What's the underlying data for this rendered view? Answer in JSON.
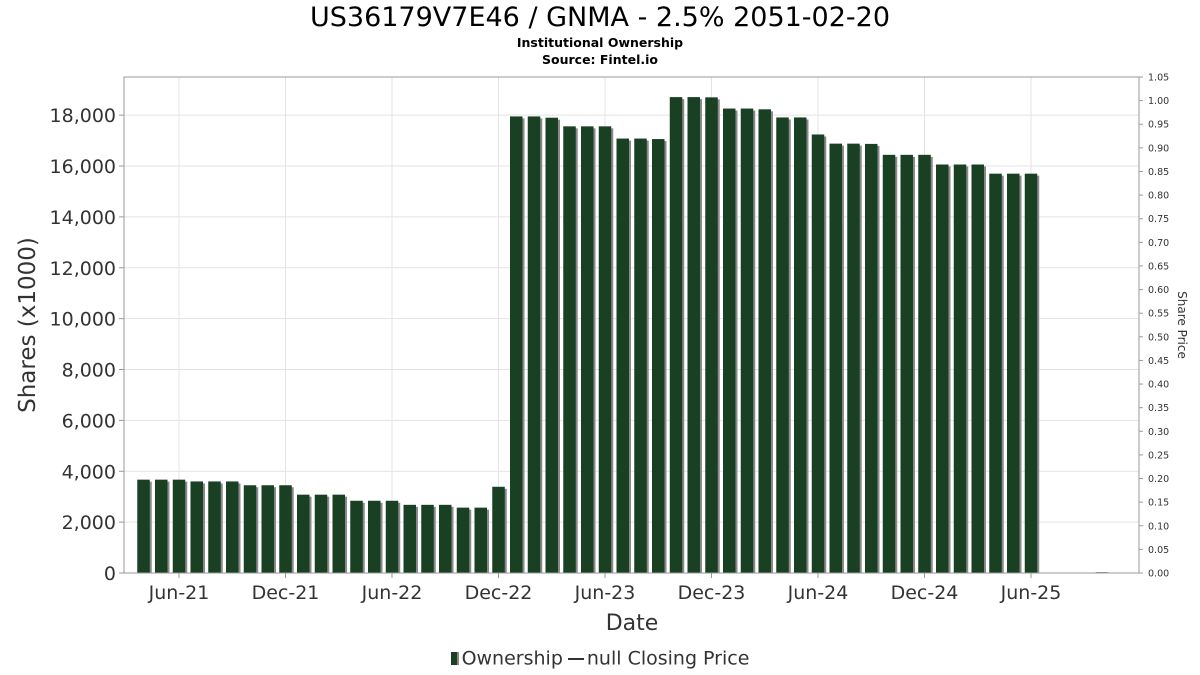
{
  "chart_data": {
    "type": "bar",
    "title": "US36179V7E46 / GNMA - 2.5% 2051-02-20",
    "subtitle": "Institutional Ownership",
    "source": "Source: Fintel.io",
    "xlabel": "Date",
    "ylabel": "Shares (x1000)",
    "ylabel_right": "Share Price",
    "ylim": [
      0,
      19500
    ],
    "ylim_right": [
      0,
      1.05
    ],
    "y_ticks": [
      "0",
      "2,000",
      "4,000",
      "6,000",
      "8,000",
      "10,000",
      "12,000",
      "14,000",
      "16,000",
      "18,000"
    ],
    "y_tick_values": [
      0,
      2000,
      4000,
      6000,
      8000,
      10000,
      12000,
      14000,
      16000,
      18000
    ],
    "y_right_ticks": [
      "0.00",
      "0.05",
      "0.10",
      "0.15",
      "0.20",
      "0.25",
      "0.30",
      "0.35",
      "0.40",
      "0.45",
      "0.50",
      "0.55",
      "0.60",
      "0.65",
      "0.70",
      "0.75",
      "0.80",
      "0.85",
      "0.90",
      "0.95",
      "1.00",
      "1.05"
    ],
    "x_ticks": [
      "Jun-21",
      "Dec-21",
      "Jun-22",
      "Dec-22",
      "Jun-23",
      "Dec-23",
      "Jun-24",
      "Dec-24",
      "Jun-25"
    ],
    "x_tick_months": [
      5,
      11,
      17,
      23,
      29,
      35,
      41,
      47,
      53
    ],
    "start_month": "2021-01",
    "grid": true,
    "series": [
      {
        "name": "Ownership",
        "color": "#1a4024",
        "months": [
          3,
          4,
          5,
          6,
          7,
          8,
          9,
          10,
          11,
          12,
          13,
          14,
          15,
          16,
          17,
          18,
          19,
          20,
          21,
          22,
          23,
          24,
          25,
          26,
          27,
          28,
          29,
          30,
          31,
          32,
          33,
          34,
          35,
          36,
          37,
          38,
          39,
          40,
          41,
          42,
          43,
          44,
          45,
          46,
          47,
          48,
          49,
          50,
          51,
          52,
          53,
          54,
          55,
          56,
          57
        ],
        "values": [
          3670,
          3670,
          3670,
          3600,
          3600,
          3600,
          3450,
          3450,
          3450,
          3080,
          3080,
          3080,
          2840,
          2840,
          2840,
          2680,
          2680,
          2680,
          2570,
          2570,
          3390,
          17950,
          17950,
          17900,
          17560,
          17560,
          17560,
          17080,
          17080,
          17060,
          18710,
          18710,
          18700,
          18260,
          18260,
          18230,
          17910,
          17910,
          17240,
          16880,
          16880,
          16870,
          16440,
          16440,
          16440,
          16060,
          16060,
          16060,
          15700,
          15700,
          15700,
          0,
          0,
          0,
          30
        ]
      }
    ],
    "legend": {
      "placement": "bottom",
      "ownership_label": "Ownership",
      "price_label": "null Closing Price"
    }
  }
}
